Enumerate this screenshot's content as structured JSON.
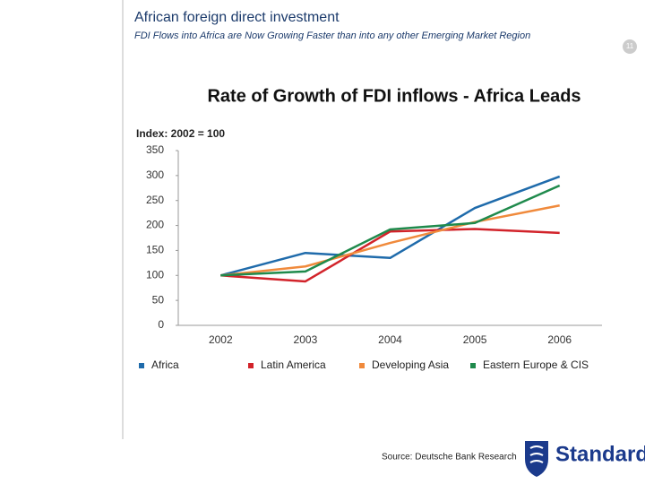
{
  "header": {
    "title": "African foreign direct investment",
    "subtitle": "FDI Flows into Africa are Now Growing Faster than into any other Emerging Market Region",
    "page_number": "11"
  },
  "chart_data": {
    "type": "line",
    "title": "Rate of Growth of FDI inflows - Africa Leads",
    "y_label": "Index: 2002 = 100",
    "categories": [
      "2002",
      "2003",
      "2004",
      "2005",
      "2006"
    ],
    "series": [
      {
        "name": "Africa",
        "color": "#1f6bab",
        "values": [
          100,
          145,
          135,
          235,
          298
        ]
      },
      {
        "name": "Latin America",
        "color": "#d2232a",
        "values": [
          100,
          88,
          188,
          193,
          185
        ]
      },
      {
        "name": "Developing Asia",
        "color": "#f08a3c",
        "values": [
          100,
          118,
          165,
          207,
          240
        ]
      },
      {
        "name": "Eastern Europe & CIS",
        "color": "#1f8a4c",
        "values": [
          100,
          108,
          192,
          205,
          280
        ]
      }
    ],
    "ylim": [
      0,
      350
    ],
    "yticks": [
      0,
      50,
      100,
      150,
      200,
      250,
      300,
      350
    ],
    "grid": false,
    "legend": "bottom"
  },
  "footer": {
    "source": "Source: Deutsche Bank Research",
    "logo_text": "Standard"
  }
}
